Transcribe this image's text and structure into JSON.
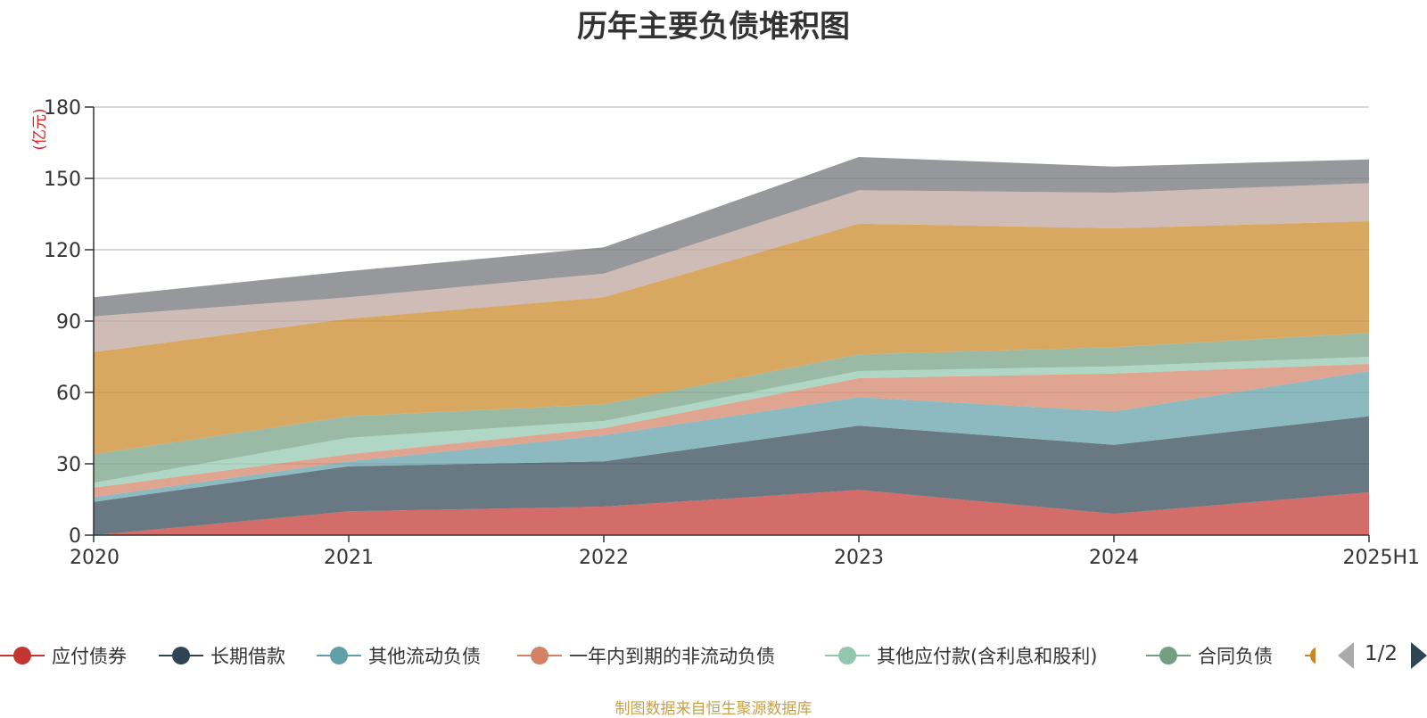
{
  "chart_data": {
    "type": "area",
    "stacked": true,
    "title": "历年主要负债堆积图",
    "unit_label": "(亿元)",
    "categories": [
      "2020",
      "2021",
      "2022",
      "2023",
      "2024",
      "2025H1"
    ],
    "ylim": [
      0,
      180
    ],
    "yticks": [
      0,
      30,
      60,
      90,
      120,
      150,
      180
    ],
    "grid": true,
    "series": [
      {
        "name": "应付债券",
        "color": "#c23531",
        "values": [
          0,
          10,
          12,
          19,
          9,
          18
        ]
      },
      {
        "name": "长期借款",
        "color": "#2f4554",
        "values": [
          14,
          19,
          19,
          27,
          29,
          32
        ]
      },
      {
        "name": "其他流动负债",
        "color": "#61a0a8",
        "values": [
          2,
          2,
          11,
          12,
          14,
          19
        ]
      },
      {
        "name": "一年内到期的非流动负债",
        "color": "#d48265",
        "values": [
          4,
          3,
          3,
          8,
          16,
          3
        ]
      },
      {
        "name": "其他应付款(含利息和股利)",
        "color": "#91c7ae",
        "values": [
          2,
          7,
          3,
          3,
          3,
          3
        ]
      },
      {
        "name": "合同负债",
        "color": "#749f83",
        "values": [
          12,
          9,
          7,
          7,
          8,
          10
        ]
      },
      {
        "name": "",
        "color": "#ca8622",
        "values": [
          43,
          41,
          45,
          55,
          50,
          47
        ]
      },
      {
        "name": "",
        "color": "#bda29a",
        "values": [
          15,
          9,
          10,
          14,
          15,
          16
        ]
      },
      {
        "name": "",
        "color": "#6e7074",
        "values": [
          8,
          11,
          11,
          14,
          11,
          10
        ]
      }
    ]
  },
  "legend": {
    "visible_items": [
      {
        "name": "应付债券",
        "color": "#c23531"
      },
      {
        "name": "长期借款",
        "color": "#2f4554"
      },
      {
        "name": "其他流动负债",
        "color": "#61a0a8"
      },
      {
        "name": "一年内到期的非流动负债",
        "color": "#d48265"
      },
      {
        "name": "其他应付款(含利息和股利)",
        "color": "#91c7ae"
      },
      {
        "name": "合同负债",
        "color": "#749f83"
      }
    ],
    "clipped_item_color": "#ca8622",
    "pager_text": "1/2"
  },
  "source_text": "制图数据来自恒生聚源数据库"
}
